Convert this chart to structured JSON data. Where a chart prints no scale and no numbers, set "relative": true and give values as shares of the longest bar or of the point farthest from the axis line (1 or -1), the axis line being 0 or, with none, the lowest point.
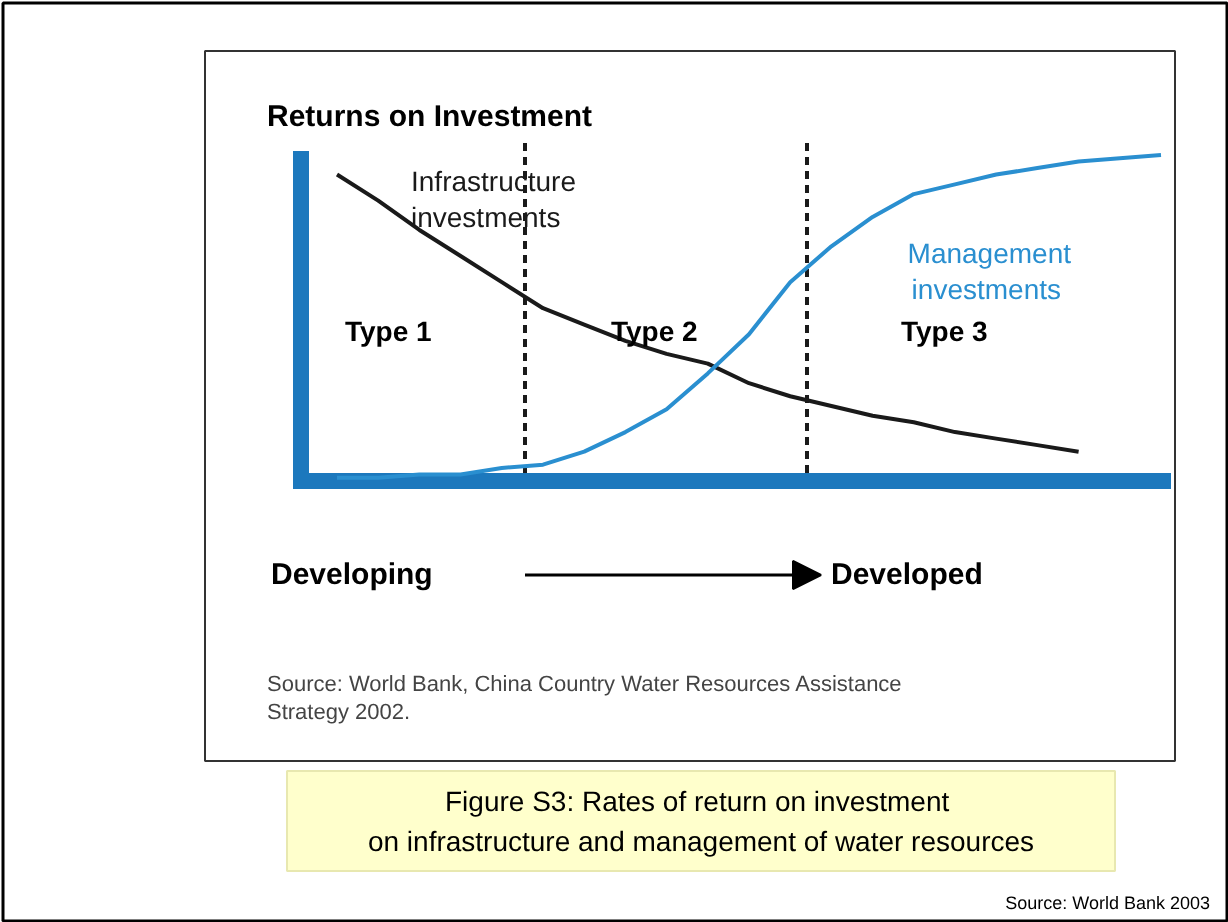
{
  "chart_data": {
    "type": "line",
    "relative": true,
    "title": "Returns on Investment",
    "grid": false,
    "marker": "none",
    "categories": [
      null,
      null,
      null,
      null,
      null,
      null,
      null,
      null,
      null,
      null,
      null,
      null,
      null,
      null,
      null,
      null,
      null,
      null,
      null,
      null,
      null
    ],
    "series": [
      {
        "name": "Infrastructure investments",
        "color": "#1a1a1a",
        "values": [
          0.94,
          0.86,
          0.77,
          0.69,
          0.61,
          0.53,
          0.48,
          0.43,
          0.39,
          0.36,
          0.3,
          0.26,
          0.23,
          0.2,
          0.18,
          0.15,
          0.13,
          0.11,
          0.09,
          null,
          null
        ]
      },
      {
        "name": "Management investments",
        "color": "#2a8fd0",
        "values": [
          0.01,
          0.01,
          0.02,
          0.02,
          0.04,
          0.05,
          0.09,
          0.15,
          0.22,
          0.33,
          0.45,
          0.61,
          0.72,
          0.81,
          0.88,
          0.91,
          0.94,
          0.96,
          0.98,
          0.99,
          1.0
        ]
      }
    ],
    "annotations": [
      "Type 1",
      "Type 2",
      "Type 3",
      "Developing",
      "Developed",
      "Source: World Bank, China Country Water Resources Assistance Strategy 2002.",
      "Figure S3:  Rates of return on investment on infrastructure and management of water resources",
      "Source:  World Bank 2003"
    ]
  }
}
